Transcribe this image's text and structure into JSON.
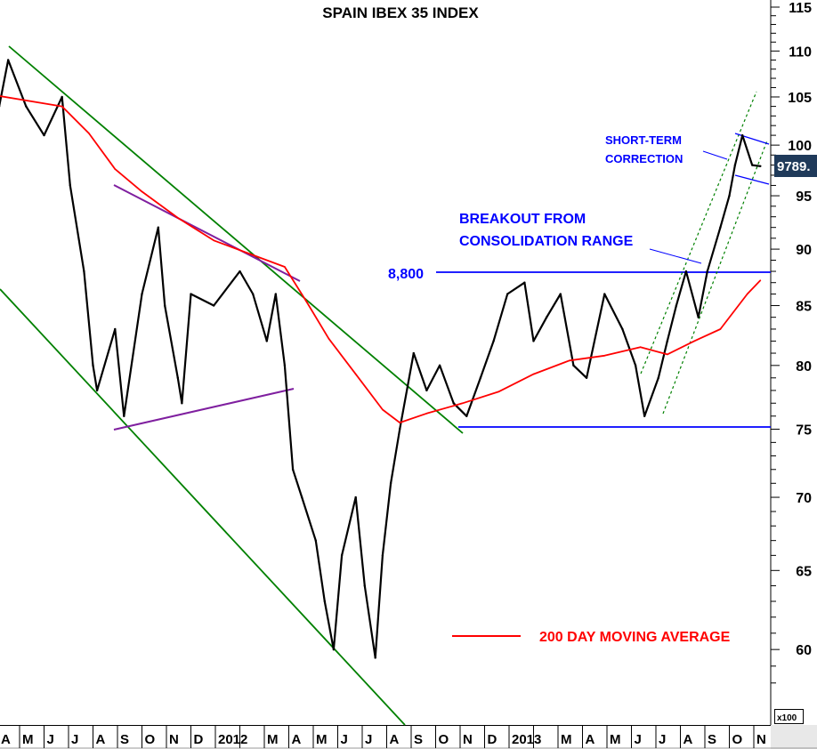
{
  "chart_data": {
    "type": "line",
    "title": "SPAIN IBEX 35 INDEX",
    "y_unit_label": "x100",
    "y_scale": "log",
    "ylim": [
      57,
      116
    ],
    "y_ticks": [
      60,
      65,
      70,
      75,
      80,
      85,
      90,
      95,
      100,
      105,
      110,
      115
    ],
    "x_ticks": [
      "A",
      "M",
      "J",
      "J",
      "A",
      "S",
      "O",
      "N",
      "D",
      "2012",
      "",
      "M",
      "A",
      "M",
      "J",
      "J",
      "A",
      "S",
      "O",
      "N",
      "D",
      "2013",
      "",
      "M",
      "A",
      "M",
      "J",
      "J",
      "A",
      "S",
      "O",
      "N"
    ],
    "x_tick_start": "2011-04",
    "last_value_label": "9789.",
    "grid": false,
    "legend_position": "bottom-right",
    "series": [
      {
        "name": "",
        "color": "#000000",
        "points": [
          [
            "2011-04-06",
            104
          ],
          [
            "2011-04-17",
            109
          ],
          [
            "2011-05-09",
            104
          ],
          [
            "2011-06-01",
            101
          ],
          [
            "2011-06-23",
            105
          ],
          [
            "2011-07-03",
            96
          ],
          [
            "2011-07-20",
            88
          ],
          [
            "2011-08-01",
            80
          ],
          [
            "2011-08-06",
            78
          ],
          [
            "2011-08-28",
            83
          ],
          [
            "2011-09-09",
            76
          ],
          [
            "2011-10-01",
            86
          ],
          [
            "2011-10-21",
            92
          ],
          [
            "2011-10-29",
            85
          ],
          [
            "2011-11-15",
            79
          ],
          [
            "2011-11-20",
            77
          ],
          [
            "2011-12-01",
            86
          ],
          [
            "2011-12-29",
            85
          ],
          [
            "2012-02-01",
            88
          ],
          [
            "2012-02-17",
            86
          ],
          [
            "2012-03-04",
            82
          ],
          [
            "2012-03-15",
            86
          ],
          [
            "2012-03-26",
            80
          ],
          [
            "2012-04-06",
            72
          ],
          [
            "2012-04-17",
            70
          ],
          [
            "2012-05-04",
            67
          ],
          [
            "2012-05-15",
            63
          ],
          [
            "2012-05-26",
            60
          ],
          [
            "2012-06-06",
            66
          ],
          [
            "2012-06-23",
            70
          ],
          [
            "2012-07-04",
            64
          ],
          [
            "2012-07-17",
            59.5
          ],
          [
            "2012-07-26",
            66
          ],
          [
            "2012-08-06",
            71
          ],
          [
            "2012-08-17",
            75
          ],
          [
            "2012-09-04",
            81
          ],
          [
            "2012-09-20",
            78
          ],
          [
            "2012-10-06",
            80
          ],
          [
            "2012-10-23",
            77
          ],
          [
            "2012-11-09",
            76
          ],
          [
            "2012-11-26",
            79
          ],
          [
            "2012-12-12",
            82
          ],
          [
            "2012-12-29",
            86
          ],
          [
            "2013-01-20",
            87
          ],
          [
            "2013-02-01",
            82
          ],
          [
            "2013-02-17",
            84
          ],
          [
            "2013-03-04",
            86
          ],
          [
            "2013-03-20",
            80
          ],
          [
            "2013-04-06",
            79
          ],
          [
            "2013-04-28",
            86
          ],
          [
            "2013-05-20",
            83
          ],
          [
            "2013-06-06",
            80
          ],
          [
            "2013-06-17",
            76
          ],
          [
            "2013-07-04",
            79
          ],
          [
            "2013-07-15",
            82
          ],
          [
            "2013-07-26",
            85
          ],
          [
            "2013-08-08",
            88
          ],
          [
            "2013-08-23",
            84
          ],
          [
            "2013-09-04",
            88
          ],
          [
            "2013-09-20",
            92
          ],
          [
            "2013-10-01",
            95
          ],
          [
            "2013-10-08",
            98
          ],
          [
            "2013-10-17",
            101
          ],
          [
            "2013-10-29",
            98
          ],
          [
            "2013-11-09",
            97.89
          ]
        ]
      },
      {
        "name": "200 DAY MOVING AVERAGE",
        "color": "#ff0000",
        "points": [
          [
            "2011-04-06",
            105.1
          ],
          [
            "2011-06-23",
            104.0
          ],
          [
            "2011-07-26",
            101.2
          ],
          [
            "2011-08-28",
            97.6
          ],
          [
            "2011-10-01",
            95.4
          ],
          [
            "2011-11-15",
            92.9
          ],
          [
            "2011-12-29",
            90.8
          ],
          [
            "2012-02-12",
            89.6
          ],
          [
            "2012-03-26",
            88.4
          ],
          [
            "2012-04-23",
            85.3
          ],
          [
            "2012-05-20",
            82.2
          ],
          [
            "2012-06-23",
            79.3
          ],
          [
            "2012-07-26",
            76.5
          ],
          [
            "2012-08-17",
            75.5
          ],
          [
            "2012-09-20",
            76.2
          ],
          [
            "2012-11-04",
            77.0
          ],
          [
            "2012-12-18",
            77.9
          ],
          [
            "2013-02-01",
            79.3
          ],
          [
            "2013-03-15",
            80.4
          ],
          [
            "2013-04-28",
            80.8
          ],
          [
            "2013-06-12",
            81.5
          ],
          [
            "2013-07-15",
            80.9
          ],
          [
            "2013-08-18",
            82.0
          ],
          [
            "2013-09-20",
            83.0
          ],
          [
            "2013-10-23",
            86.0
          ],
          [
            "2013-11-09",
            87.2
          ]
        ]
      }
    ],
    "annotations": {
      "level_label": "8,800",
      "breakout_line1": "BREAKOUT FROM",
      "breakout_line2": "CONSOLIDATION RANGE",
      "correction_line1": "SHORT-TERM",
      "correction_line2": "CORRECTION",
      "colors": {
        "trend": "#008000",
        "triangle": "#7f1f9f",
        "levels": "#0000ff",
        "text": "#0000ff",
        "label_box": "#1f3a5a"
      }
    }
  }
}
